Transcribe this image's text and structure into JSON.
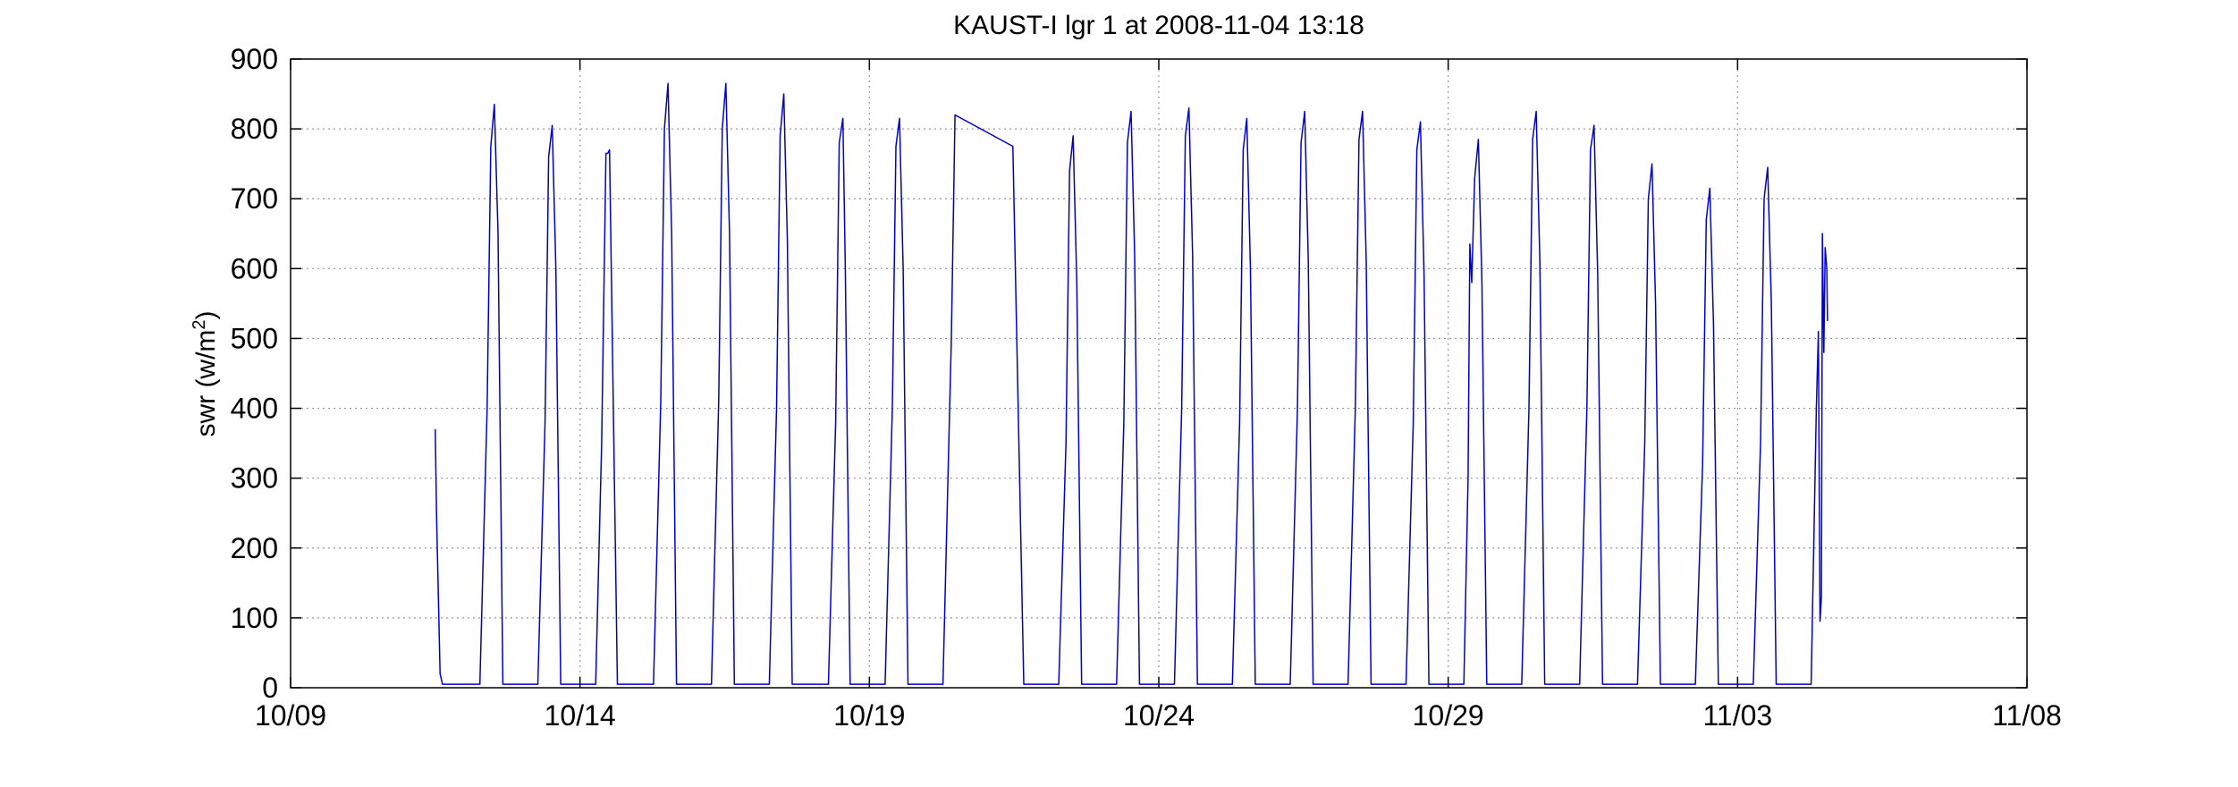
{
  "chart_data": {
    "type": "line",
    "title": "KAUST-I lgr 1 at 2008-11-04 13:18",
    "xlabel": "",
    "ylabel": "swr (w/m",
    "ylabel_sup": "2",
    "ylabel_end": ")",
    "x_is_date": true,
    "year": 2008,
    "xlim": [
      "2008-10-09",
      "2008-11-08"
    ],
    "ylim": [
      0,
      900
    ],
    "xticks": [
      "2008-10-09",
      "2008-10-14",
      "2008-10-19",
      "2008-10-24",
      "2008-10-29",
      "2008-11-03",
      "2008-11-08"
    ],
    "xtick_labels": [
      "10/09",
      "10/14",
      "10/19",
      "10/24",
      "10/29",
      "11/03",
      "11/08"
    ],
    "yticks": [
      0,
      100,
      200,
      300,
      400,
      500,
      600,
      700,
      800,
      900
    ],
    "ytick_labels": [
      "0",
      "100",
      "200",
      "300",
      "400",
      "500",
      "600",
      "700",
      "800",
      "900"
    ],
    "grid": true,
    "legend": "none",
    "line_color": "#0000cc",
    "axis_color": "#000000",
    "grid_color": "#9a9a9a",
    "series": [
      {
        "name": "",
        "x": [
          "2008-10-11 12:00",
          "2008-10-11 12:30",
          "2008-10-11 14:00",
          "2008-10-11 15:00",
          "2008-10-12 06:30",
          "2008-10-12 09:30",
          "2008-10-12 11:00",
          "2008-10-12 12:30",
          "2008-10-12 14:00",
          "2008-10-12 16:00",
          "2008-10-13 06:30",
          "2008-10-13 09:30",
          "2008-10-13 11:00",
          "2008-10-13 12:30",
          "2008-10-13 14:00",
          "2008-10-13 16:00",
          "2008-10-14 06:30",
          "2008-10-14 09:00",
          "2008-10-14 10:45",
          "2008-10-14 11:30",
          "2008-10-14 12:15",
          "2008-10-14 15:30",
          "2008-10-15 06:30",
          "2008-10-15 09:30",
          "2008-10-15 11:00",
          "2008-10-15 12:30",
          "2008-10-15 14:00",
          "2008-10-15 16:00",
          "2008-10-16 06:30",
          "2008-10-16 09:30",
          "2008-10-16 11:00",
          "2008-10-16 12:30",
          "2008-10-16 14:00",
          "2008-10-16 16:00",
          "2008-10-17 06:30",
          "2008-10-17 09:30",
          "2008-10-17 11:00",
          "2008-10-17 12:30",
          "2008-10-17 14:00",
          "2008-10-17 16:00",
          "2008-10-18 07:00",
          "2008-10-18 10:00",
          "2008-10-18 11:30",
          "2008-10-18 13:00",
          "2008-10-18 14:00",
          "2008-10-18 16:00",
          "2008-10-19 06:30",
          "2008-10-19 09:30",
          "2008-10-19 11:00",
          "2008-10-19 12:30",
          "2008-10-19 14:00",
          "2008-10-19 16:00",
          "2008-10-20 06:30",
          "2008-10-20 10:00",
          "2008-10-20 11:30",
          "2008-10-21 11:30",
          "2008-10-21 16:00",
          "2008-10-22 06:30",
          "2008-10-22 09:30",
          "2008-10-22 11:00",
          "2008-10-22 12:30",
          "2008-10-22 14:00",
          "2008-10-22 16:00",
          "2008-10-23 06:30",
          "2008-10-23 09:30",
          "2008-10-23 11:00",
          "2008-10-23 12:30",
          "2008-10-23 14:00",
          "2008-10-23 16:00",
          "2008-10-24 06:30",
          "2008-10-24 09:30",
          "2008-10-24 11:00",
          "2008-10-24 12:30",
          "2008-10-24 14:00",
          "2008-10-24 16:00",
          "2008-10-25 06:30",
          "2008-10-25 09:30",
          "2008-10-25 11:00",
          "2008-10-25 12:30",
          "2008-10-25 14:00",
          "2008-10-25 16:00",
          "2008-10-26 06:30",
          "2008-10-26 09:30",
          "2008-10-26 11:00",
          "2008-10-26 12:30",
          "2008-10-26 14:00",
          "2008-10-26 16:00",
          "2008-10-27 06:30",
          "2008-10-27 09:30",
          "2008-10-27 11:00",
          "2008-10-27 12:30",
          "2008-10-27 14:00",
          "2008-10-27 16:00",
          "2008-10-28 06:30",
          "2008-10-28 09:30",
          "2008-10-28 11:00",
          "2008-10-28 12:30",
          "2008-10-28 14:00",
          "2008-10-28 16:00",
          "2008-10-29 06:30",
          "2008-10-29 08:15",
          "2008-10-29 09:00",
          "2008-10-29 09:45",
          "2008-10-29 11:00",
          "2008-10-29 12:30",
          "2008-10-29 14:00",
          "2008-10-29 16:00",
          "2008-10-30 06:30",
          "2008-10-30 09:30",
          "2008-10-30 11:00",
          "2008-10-30 12:30",
          "2008-10-30 14:00",
          "2008-10-30 16:00",
          "2008-10-31 06:30",
          "2008-10-31 09:30",
          "2008-10-31 11:00",
          "2008-10-31 12:30",
          "2008-10-31 14:00",
          "2008-10-31 16:00",
          "2008-11-01 06:30",
          "2008-11-01 09:30",
          "2008-11-01 11:00",
          "2008-11-01 12:30",
          "2008-11-01 14:00",
          "2008-11-01 16:00",
          "2008-11-02 06:30",
          "2008-11-02 09:30",
          "2008-11-02 11:00",
          "2008-11-02 12:30",
          "2008-11-02 14:00",
          "2008-11-02 16:00",
          "2008-11-03 06:30",
          "2008-11-03 09:30",
          "2008-11-03 11:00",
          "2008-11-03 12:30",
          "2008-11-03 14:00",
          "2008-11-03 16:00",
          "2008-11-04 06:30",
          "2008-11-04 08:40",
          "2008-11-04 09:30",
          "2008-11-04 10:10",
          "2008-11-04 10:45",
          "2008-11-04 11:10",
          "2008-11-04 11:45",
          "2008-11-04 12:20",
          "2008-11-04 13:00",
          "2008-11-04 13:18"
        ],
        "y": [
          370,
          250,
          20,
          5,
          5,
          400,
          775,
          835,
          650,
          5,
          5,
          380,
          760,
          805,
          600,
          5,
          5,
          350,
          765,
          765,
          770,
          5,
          5,
          410,
          800,
          865,
          650,
          5,
          5,
          410,
          800,
          865,
          650,
          5,
          5,
          400,
          790,
          850,
          640,
          5,
          5,
          380,
          780,
          815,
          600,
          5,
          5,
          400,
          775,
          815,
          600,
          5,
          5,
          500,
          820,
          775,
          5,
          5,
          350,
          740,
          790,
          580,
          5,
          5,
          380,
          780,
          825,
          620,
          5,
          5,
          400,
          790,
          830,
          620,
          5,
          5,
          380,
          770,
          815,
          600,
          5,
          5,
          400,
          780,
          825,
          610,
          5,
          5,
          400,
          785,
          825,
          610,
          5,
          5,
          380,
          770,
          810,
          590,
          5,
          5,
          300,
          635,
          580,
          730,
          785,
          580,
          5,
          5,
          400,
          785,
          825,
          610,
          5,
          5,
          400,
          770,
          805,
          590,
          5,
          5,
          350,
          700,
          750,
          550,
          5,
          5,
          320,
          670,
          715,
          520,
          5,
          5,
          350,
          700,
          745,
          550,
          5,
          5,
          400,
          510,
          95,
          130,
          650,
          480,
          630,
          600,
          525
        ]
      }
    ]
  }
}
